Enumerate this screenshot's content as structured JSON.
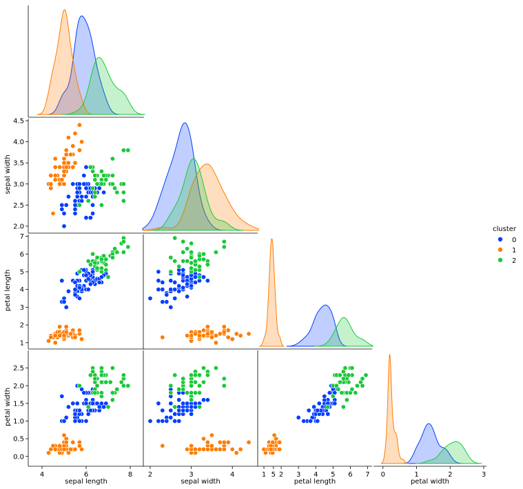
{
  "chart_data": {
    "type": "pairplot",
    "corner": true,
    "variables": [
      "sepal length",
      "sepal width",
      "petal length",
      "petal width"
    ],
    "hue": {
      "title": "cluster",
      "levels": [
        "0",
        "1",
        "2"
      ],
      "colors": [
        "#023eff",
        "#ff7c00",
        "#1ac938"
      ]
    },
    "axes": {
      "sepal length": {
        "range": [
          3.5,
          8.5
        ],
        "ticks": [
          4,
          6,
          8
        ]
      },
      "sepal width": {
        "range": [
          1.9,
          4.55
        ],
        "ticks": [
          2.0,
          2.5,
          3.0,
          3.5,
          4.0,
          4.5
        ],
        "tick_labels": [
          "2.0",
          "2.5",
          "3.0",
          "3.5",
          "4.0",
          "4.5"
        ],
        "x_ticks": [
          2,
          3,
          4,
          5
        ]
      },
      "petal length": {
        "range": [
          0.8,
          7.1
        ],
        "ticks": [
          1,
          2,
          3,
          4,
          5,
          6,
          7
        ]
      },
      "petal width": {
        "range": [
          -0.2,
          3.0
        ],
        "ticks": [
          0.0,
          0.5,
          1.0,
          1.5,
          2.0,
          2.5
        ],
        "tick_labels": [
          "0.0",
          "0.5",
          "1.0",
          "1.5",
          "2.0",
          "2.5"
        ],
        "x_ticks": [
          0,
          1,
          2,
          3
        ]
      }
    },
    "grid": false,
    "legend_position": "right",
    "points": {
      "0": [
        [
          5.7,
          2.8,
          4.1,
          1.3
        ],
        [
          6.4,
          3.2,
          4.5,
          1.5
        ],
        [
          6.9,
          3.1,
          4.9,
          1.5
        ],
        [
          5.5,
          2.3,
          4.0,
          1.3
        ],
        [
          6.5,
          2.8,
          4.6,
          1.5
        ],
        [
          5.7,
          2.8,
          4.5,
          1.3
        ],
        [
          6.3,
          3.3,
          4.7,
          1.6
        ],
        [
          4.9,
          2.4,
          3.3,
          1.0
        ],
        [
          6.6,
          2.9,
          4.6,
          1.3
        ],
        [
          5.2,
          2.7,
          3.9,
          1.4
        ],
        [
          5.0,
          2.0,
          3.5,
          1.0
        ],
        [
          5.9,
          3.0,
          4.2,
          1.5
        ],
        [
          6.0,
          2.2,
          4.0,
          1.0
        ],
        [
          6.1,
          2.9,
          4.7,
          1.4
        ],
        [
          5.6,
          2.9,
          3.6,
          1.3
        ],
        [
          6.7,
          3.1,
          4.4,
          1.4
        ],
        [
          5.6,
          3.0,
          4.5,
          1.5
        ],
        [
          5.8,
          2.7,
          4.1,
          1.0
        ],
        [
          6.2,
          2.2,
          4.5,
          1.5
        ],
        [
          5.6,
          2.5,
          3.9,
          1.1
        ],
        [
          5.9,
          3.2,
          4.8,
          1.8
        ],
        [
          6.1,
          2.8,
          4.0,
          1.3
        ],
        [
          6.3,
          2.5,
          4.9,
          1.5
        ],
        [
          6.1,
          2.8,
          4.7,
          1.2
        ],
        [
          6.4,
          2.9,
          4.3,
          1.3
        ],
        [
          6.6,
          3.0,
          4.4,
          1.4
        ],
        [
          6.8,
          2.8,
          4.8,
          1.4
        ],
        [
          6.0,
          2.9,
          4.5,
          1.5
        ],
        [
          5.7,
          2.6,
          3.5,
          1.0
        ],
        [
          5.5,
          2.4,
          3.8,
          1.1
        ],
        [
          5.5,
          2.4,
          3.7,
          1.0
        ],
        [
          5.8,
          2.7,
          3.9,
          1.2
        ],
        [
          6.0,
          2.7,
          5.1,
          1.6
        ],
        [
          5.4,
          3.0,
          4.5,
          1.5
        ],
        [
          6.0,
          3.4,
          4.5,
          1.6
        ],
        [
          6.7,
          3.1,
          4.7,
          1.5
        ],
        [
          6.3,
          2.3,
          4.4,
          1.3
        ],
        [
          5.6,
          3.0,
          4.1,
          1.3
        ],
        [
          5.5,
          2.5,
          4.0,
          1.3
        ],
        [
          5.5,
          2.6,
          4.4,
          1.2
        ],
        [
          6.1,
          3.0,
          4.6,
          1.4
        ],
        [
          5.8,
          2.6,
          4.0,
          1.2
        ],
        [
          5.0,
          2.3,
          3.3,
          1.0
        ],
        [
          5.6,
          2.7,
          4.2,
          1.3
        ],
        [
          5.7,
          3.0,
          4.2,
          1.2
        ],
        [
          5.7,
          2.9,
          4.2,
          1.3
        ],
        [
          6.2,
          2.9,
          4.3,
          1.3
        ],
        [
          5.1,
          2.5,
          3.0,
          1.1
        ],
        [
          5.7,
          2.8,
          4.1,
          1.3
        ],
        [
          5.8,
          2.7,
          5.1,
          1.9
        ],
        [
          4.9,
          2.5,
          4.5,
          1.7
        ],
        [
          6.0,
          2.2,
          5.0,
          1.5
        ],
        [
          5.6,
          2.8,
          4.9,
          2.0
        ],
        [
          6.3,
          2.7,
          4.9,
          1.8
        ],
        [
          6.2,
          2.8,
          4.8,
          1.8
        ],
        [
          6.1,
          3.0,
          4.9,
          1.8
        ],
        [
          6.3,
          2.8,
          5.1,
          1.5
        ],
        [
          6.0,
          3.0,
          4.8,
          1.8
        ],
        [
          5.8,
          2.7,
          5.1,
          1.9
        ],
        [
          6.3,
          2.5,
          5.0,
          1.9
        ],
        [
          5.9,
          3.0,
          5.1,
          1.8
        ],
        [
          5.7,
          2.5,
          5.0,
          2.0
        ]
      ],
      "1": [
        [
          5.1,
          3.5,
          1.4,
          0.2
        ],
        [
          4.9,
          3.0,
          1.4,
          0.2
        ],
        [
          4.7,
          3.2,
          1.3,
          0.2
        ],
        [
          4.6,
          3.1,
          1.5,
          0.2
        ],
        [
          5.0,
          3.6,
          1.4,
          0.2
        ],
        [
          5.4,
          3.9,
          1.7,
          0.4
        ],
        [
          4.6,
          3.4,
          1.4,
          0.3
        ],
        [
          5.0,
          3.4,
          1.5,
          0.2
        ],
        [
          4.4,
          2.9,
          1.4,
          0.2
        ],
        [
          4.9,
          3.1,
          1.5,
          0.1
        ],
        [
          5.4,
          3.7,
          1.5,
          0.2
        ],
        [
          4.8,
          3.4,
          1.6,
          0.2
        ],
        [
          4.8,
          3.0,
          1.4,
          0.1
        ],
        [
          4.3,
          3.0,
          1.1,
          0.1
        ],
        [
          5.8,
          4.0,
          1.2,
          0.2
        ],
        [
          5.7,
          4.4,
          1.5,
          0.4
        ],
        [
          5.4,
          3.9,
          1.3,
          0.4
        ],
        [
          5.1,
          3.5,
          1.4,
          0.3
        ],
        [
          5.7,
          3.8,
          1.7,
          0.3
        ],
        [
          5.1,
          3.8,
          1.5,
          0.3
        ],
        [
          5.4,
          3.4,
          1.7,
          0.2
        ],
        [
          5.1,
          3.7,
          1.5,
          0.4
        ],
        [
          4.6,
          3.6,
          1.0,
          0.2
        ],
        [
          5.1,
          3.3,
          1.7,
          0.5
        ],
        [
          4.8,
          3.4,
          1.9,
          0.2
        ],
        [
          5.0,
          3.0,
          1.6,
          0.2
        ],
        [
          5.0,
          3.4,
          1.6,
          0.4
        ],
        [
          5.2,
          3.5,
          1.5,
          0.2
        ],
        [
          5.2,
          3.4,
          1.4,
          0.2
        ],
        [
          4.7,
          3.2,
          1.6,
          0.2
        ],
        [
          4.8,
          3.1,
          1.6,
          0.2
        ],
        [
          5.4,
          3.4,
          1.5,
          0.4
        ],
        [
          5.2,
          4.1,
          1.5,
          0.1
        ],
        [
          5.5,
          4.2,
          1.4,
          0.2
        ],
        [
          4.9,
          3.1,
          1.5,
          0.2
        ],
        [
          5.0,
          3.2,
          1.2,
          0.2
        ],
        [
          5.5,
          3.5,
          1.3,
          0.2
        ],
        [
          4.4,
          3.0,
          1.3,
          0.2
        ],
        [
          5.1,
          3.4,
          1.5,
          0.2
        ],
        [
          5.0,
          3.5,
          1.3,
          0.3
        ],
        [
          4.5,
          2.3,
          1.3,
          0.3
        ],
        [
          4.4,
          3.2,
          1.3,
          0.2
        ],
        [
          5.0,
          3.5,
          1.6,
          0.6
        ],
        [
          5.1,
          3.8,
          1.9,
          0.4
        ],
        [
          4.8,
          3.0,
          1.4,
          0.3
        ],
        [
          5.1,
          3.8,
          1.6,
          0.2
        ],
        [
          4.6,
          3.2,
          1.4,
          0.2
        ],
        [
          5.3,
          3.7,
          1.5,
          0.2
        ],
        [
          5.0,
          3.3,
          1.4,
          0.2
        ]
      ],
      "2": [
        [
          7.0,
          3.2,
          4.7,
          1.4
        ],
        [
          6.7,
          3.0,
          5.0,
          1.7
        ],
        [
          6.3,
          3.3,
          6.0,
          2.5
        ],
        [
          7.1,
          3.0,
          5.9,
          2.1
        ],
        [
          6.3,
          2.9,
          5.6,
          1.8
        ],
        [
          6.5,
          3.0,
          5.8,
          2.2
        ],
        [
          7.6,
          3.0,
          6.6,
          2.1
        ],
        [
          7.3,
          2.9,
          6.3,
          1.8
        ],
        [
          6.7,
          2.5,
          5.8,
          1.8
        ],
        [
          7.2,
          3.6,
          6.1,
          2.5
        ],
        [
          6.5,
          3.2,
          5.1,
          2.0
        ],
        [
          6.4,
          2.7,
          5.3,
          1.9
        ],
        [
          6.8,
          3.0,
          5.5,
          2.1
        ],
        [
          5.7,
          2.5,
          5.0,
          2.0
        ],
        [
          6.4,
          3.2,
          5.3,
          2.3
        ],
        [
          6.5,
          3.0,
          5.5,
          1.8
        ],
        [
          7.7,
          3.8,
          6.7,
          2.2
        ],
        [
          7.7,
          2.6,
          6.9,
          2.3
        ],
        [
          6.9,
          3.2,
          5.7,
          2.3
        ],
        [
          7.7,
          2.8,
          6.7,
          2.0
        ],
        [
          6.7,
          3.3,
          5.7,
          2.1
        ],
        [
          7.2,
          3.2,
          6.0,
          1.8
        ],
        [
          6.4,
          2.8,
          5.6,
          2.1
        ],
        [
          7.2,
          3.0,
          5.8,
          1.6
        ],
        [
          7.4,
          2.8,
          6.1,
          1.9
        ],
        [
          7.9,
          3.8,
          6.4,
          2.0
        ],
        [
          6.4,
          2.8,
          5.6,
          2.2
        ],
        [
          6.1,
          2.6,
          5.6,
          1.4
        ],
        [
          7.7,
          3.0,
          6.1,
          2.3
        ],
        [
          6.3,
          3.4,
          5.6,
          2.4
        ],
        [
          6.4,
          3.1,
          5.5,
          1.8
        ],
        [
          6.9,
          3.1,
          5.4,
          2.1
        ],
        [
          6.7,
          3.1,
          5.6,
          2.4
        ],
        [
          6.9,
          3.1,
          5.1,
          2.3
        ],
        [
          6.8,
          3.2,
          5.9,
          2.3
        ],
        [
          6.7,
          3.3,
          5.7,
          2.5
        ],
        [
          6.7,
          3.0,
          5.2,
          2.3
        ],
        [
          6.5,
          3.0,
          5.2,
          2.0
        ],
        [
          6.2,
          3.4,
          5.4,
          2.3
        ]
      ]
    }
  }
}
